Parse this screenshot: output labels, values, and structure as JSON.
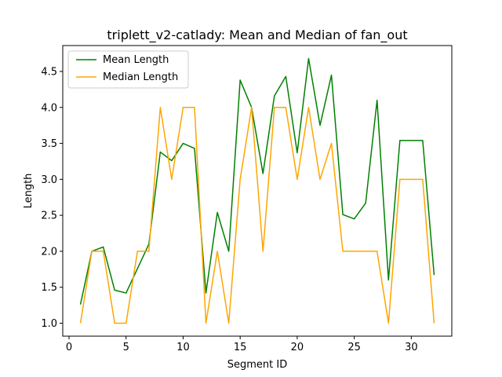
{
  "chart_data": {
    "type": "line",
    "title": "triplett_v2-catlady: Mean and Median of fan_out",
    "xlabel": "Segment ID",
    "ylabel": "Length",
    "xlim": [
      -0.55,
      33.55
    ],
    "ylim": [
      0.82,
      4.86
    ],
    "xticks": [
      0,
      5,
      10,
      15,
      20,
      25,
      30
    ],
    "yticks": [
      1.0,
      1.5,
      2.0,
      2.5,
      3.0,
      3.5,
      4.0,
      4.5
    ],
    "grid": false,
    "legend_position": "upper left",
    "x": [
      1,
      2,
      3,
      4,
      5,
      6,
      7,
      8,
      9,
      10,
      11,
      12,
      13,
      14,
      15,
      16,
      17,
      18,
      19,
      20,
      21,
      22,
      23,
      24,
      25,
      26,
      27,
      28,
      29,
      30,
      31,
      32
    ],
    "series": [
      {
        "name": "Mean Length",
        "color": "#008000",
        "values": [
          1.26,
          2.0,
          2.06,
          1.46,
          1.42,
          1.76,
          2.1,
          3.38,
          3.26,
          3.5,
          3.43,
          1.42,
          2.54,
          2.0,
          4.38,
          4.0,
          3.08,
          4.16,
          4.43,
          3.37,
          4.68,
          3.75,
          4.45,
          2.51,
          2.45,
          2.67,
          4.1,
          1.6,
          3.54,
          3.54,
          3.54,
          1.67
        ]
      },
      {
        "name": "Median Length",
        "color": "#ffa500",
        "values": [
          1.0,
          2.0,
          2.0,
          1.0,
          1.0,
          2.0,
          2.0,
          4.0,
          3.0,
          4.0,
          4.0,
          1.0,
          2.0,
          1.0,
          3.0,
          4.0,
          2.0,
          4.0,
          4.0,
          3.0,
          4.0,
          3.0,
          3.5,
          2.0,
          2.0,
          2.0,
          2.0,
          1.0,
          3.0,
          3.0,
          3.0,
          1.0
        ]
      }
    ]
  }
}
